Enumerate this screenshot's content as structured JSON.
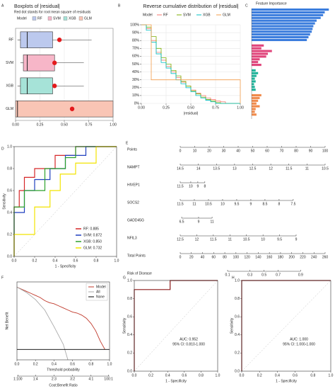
{
  "chart_data": [
    {
      "type": "box",
      "panel": "A",
      "title": "Boxplots of |residual|",
      "subtitle": "Red dot stands for root mean square of residuals",
      "legend_title": "Model",
      "categories": [
        "RF",
        "SVM",
        "XGB",
        "GLM"
      ],
      "colors": [
        "#bcc9ee",
        "#f7b6c8",
        "#a6e3d8",
        "#f9c5b5"
      ],
      "dot_color": "#e41a1c",
      "boxes": [
        {
          "min": 0.02,
          "q1": 0.05,
          "median": 0.12,
          "q3": 0.38,
          "max": 0.78,
          "rmse": 0.45
        },
        {
          "min": 0.05,
          "q1": 0.08,
          "median": 0.12,
          "q3": 0.4,
          "max": 0.7,
          "rmse": 0.4
        },
        {
          "min": 0.02,
          "q1": 0.05,
          "median": 0.12,
          "q3": 0.38,
          "max": 0.7,
          "rmse": 0.4
        },
        {
          "min": 0.0,
          "q1": 0.0,
          "median": 0.02,
          "q3": 1.0,
          "max": 1.0,
          "rmse": 0.58
        }
      ],
      "xlim": [
        0,
        1
      ],
      "xticks": [
        {
          "value": 0,
          "label": "0.00"
        },
        {
          "value": 0.25,
          "label": "0.25"
        },
        {
          "value": 0.5,
          "label": "0.50"
        },
        {
          "value": 0.75,
          "label": "0.75"
        },
        {
          "value": 1,
          "label": "1.00"
        }
      ],
      "grid": true
    },
    {
      "type": "step",
      "panel": "B",
      "title": "Reverse cumulative distribution of |residual|",
      "legend_title": "Model",
      "x_label": "|residual|",
      "x": [
        0,
        0.05,
        0.1,
        0.15,
        0.2,
        0.25,
        0.3,
        0.35,
        0.4,
        0.45,
        0.5,
        0.55,
        0.6,
        0.65,
        0.7,
        0.75,
        0.8,
        0.85,
        0.9,
        0.95,
        1.0
      ],
      "series": [
        {
          "name": "RF",
          "color": "#F8766D",
          "values": [
            100,
            95,
            80,
            65,
            55,
            47,
            40,
            33,
            27,
            22,
            17,
            13,
            10,
            7,
            5,
            3,
            2,
            0,
            0,
            0,
            0
          ]
        },
        {
          "name": "SVM",
          "color": "#7CAE00",
          "values": [
            100,
            97,
            85,
            70,
            58,
            50,
            42,
            35,
            28,
            22,
            16,
            12,
            8,
            5,
            3,
            1,
            0,
            0,
            0,
            0,
            0
          ]
        },
        {
          "name": "XGB",
          "color": "#00BFC4",
          "values": [
            100,
            93,
            78,
            63,
            52,
            45,
            38,
            30,
            25,
            20,
            15,
            10,
            7,
            4,
            2,
            0,
            0,
            0,
            0,
            0,
            0
          ]
        },
        {
          "name": "GLM",
          "color": "#f39c4a",
          "values": [
            100,
            100,
            30,
            30,
            30,
            30,
            30,
            30,
            30,
            30,
            30,
            30,
            30,
            30,
            30,
            30,
            30,
            30,
            30,
            30,
            0
          ]
        }
      ],
      "xlim": [
        0,
        1
      ],
      "xticks": [
        {
          "value": 0,
          "label": "0.00"
        },
        {
          "value": 0.25,
          "label": "0.25"
        },
        {
          "value": 0.5,
          "label": "0.50"
        },
        {
          "value": 0.75,
          "label": "0.75"
        },
        {
          "value": 1,
          "label": "1.00"
        }
      ],
      "ylim": [
        0,
        100
      ],
      "yticks": [
        {
          "value": 0,
          "label": "0%"
        },
        {
          "value": 10,
          "label": "10%"
        },
        {
          "value": 20,
          "label": "20%"
        },
        {
          "value": 30,
          "label": "30%"
        },
        {
          "value": 40,
          "label": "40%"
        },
        {
          "value": 50,
          "label": "50%"
        },
        {
          "value": 60,
          "label": "60%"
        },
        {
          "value": 70,
          "label": "70%"
        },
        {
          "value": 80,
          "label": "80%"
        },
        {
          "value": 90,
          "label": "90%"
        },
        {
          "value": 100,
          "label": "100%"
        }
      ],
      "grid": true
    },
    {
      "type": "importance",
      "panel": "C",
      "title": "Feature Importance",
      "xlim": [
        0,
        1
      ],
      "series": [
        {
          "color": "#3b7ddd",
          "values": [
            0.95,
            0.9,
            0.88,
            0.85,
            0.8,
            0.78,
            0.76,
            0.75,
            0.74,
            0.72,
            0.7,
            0.68
          ]
        },
        {
          "color": "#e0457b",
          "values": [
            0.15,
            0.12,
            0.25,
            0.2,
            0.18,
            0.1,
            0.08,
            0.12
          ]
        },
        {
          "color": "#1fb39a",
          "values": [
            0.05,
            0.08,
            0.06,
            0.04,
            0.05,
            0.03,
            0.04,
            0.05
          ]
        },
        {
          "color": "#f08a4b",
          "values": [
            0.12,
            0.1,
            0.08,
            0.06,
            0.1,
            0.05,
            0.04,
            0.06
          ]
        }
      ]
    },
    {
      "type": "roc",
      "panel": "D",
      "x_label": "1 - Specificity",
      "y_label": "Sensitivity",
      "legend": "bottom-right",
      "series": [
        {
          "name": "RF: 0.885",
          "color": "#d62728",
          "x": [
            0,
            0,
            0.05,
            0.05,
            0.1,
            0.1,
            0.2,
            0.2,
            0.4,
            0.4,
            0.6,
            0.6,
            1
          ],
          "values": [
            0,
            0.45,
            0.45,
            0.6,
            0.6,
            0.72,
            0.72,
            0.8,
            0.8,
            0.92,
            0.92,
            1,
            1
          ]
        },
        {
          "name": "SVM: 0.872",
          "color": "#1f3fbf",
          "x": [
            0,
            0,
            0.1,
            0.1,
            0.2,
            0.2,
            0.35,
            0.35,
            0.5,
            0.5,
            0.7,
            0.7,
            1
          ],
          "values": [
            0,
            0.4,
            0.4,
            0.6,
            0.6,
            0.7,
            0.7,
            0.8,
            0.8,
            0.92,
            0.92,
            1,
            1
          ]
        },
        {
          "name": "XGB: 0.850",
          "color": "#2ca02c",
          "x": [
            0,
            0,
            0.1,
            0.1,
            0.3,
            0.3,
            0.5,
            0.5,
            0.6,
            0.6,
            1
          ],
          "values": [
            0,
            0.45,
            0.45,
            0.6,
            0.6,
            0.8,
            0.8,
            0.9,
            0.9,
            1,
            1
          ]
        },
        {
          "name": "GLM: 0.732",
          "color": "#f2e400",
          "x": [
            0,
            0,
            0.2,
            0.2,
            0.35,
            0.35,
            0.45,
            0.45,
            0.6,
            0.6,
            0.8,
            0.8,
            1
          ],
          "values": [
            0,
            0.2,
            0.2,
            0.45,
            0.45,
            0.6,
            0.6,
            0.75,
            0.75,
            0.85,
            0.85,
            1,
            1
          ]
        }
      ],
      "xlim": [
        0,
        1
      ],
      "xticks": [
        {
          "value": 0,
          "label": "0.0"
        },
        0.2,
        0.4,
        0.6,
        0.8,
        {
          "value": 1,
          "label": "1.0"
        }
      ],
      "ylim": [
        0,
        1
      ],
      "yticks": [
        {
          "value": 0,
          "label": "0.0"
        },
        0.2,
        0.4,
        0.6,
        0.8,
        {
          "value": 1,
          "label": "1.0"
        }
      ]
    },
    {
      "type": "nomogram",
      "panel": "E",
      "points_lim": [
        0,
        100
      ],
      "total_lim": [
        0,
        260
      ],
      "rows": [
        {
          "label": "Points",
          "ticks": [
            0,
            10,
            20,
            30,
            40,
            50,
            60,
            70,
            80,
            90,
            100
          ],
          "points": [
            0,
            100
          ]
        },
        {
          "label": "NAMPT",
          "ticks": [
            14.5,
            14,
            13.5,
            13,
            12.5,
            12,
            11.5,
            11,
            10.5
          ],
          "points": [
            0,
            100
          ]
        },
        {
          "label": "HIVEP1",
          "ticks": [
            11.5,
            10,
            9,
            8
          ],
          "points": [
            0,
            17
          ]
        },
        {
          "label": "SOCS2",
          "ticks": [
            11.5,
            11,
            10.5,
            10,
            9.5,
            9,
            8.5,
            8,
            7.5
          ],
          "points": [
            0,
            78
          ]
        },
        {
          "label": "GADD45G",
          "ticks": [
            6.5,
            9,
            11
          ],
          "points": [
            1,
            22
          ]
        },
        {
          "label": "NFIL3",
          "ticks": [
            12.5,
            12,
            11.5,
            11,
            10.5,
            10,
            9.5,
            9
          ],
          "points": [
            0,
            80
          ]
        },
        {
          "label": "Total Points",
          "ticks": [
            0,
            20,
            40,
            60,
            80,
            100,
            120,
            140,
            160,
            180,
            200,
            220,
            240,
            260
          ],
          "total_points": [
            0,
            260
          ]
        },
        {
          "label": "Risk of Disease",
          "ticks": [
            0.1,
            0.3,
            0.5,
            0.7,
            0.9
          ],
          "total_points": [
            85,
            216
          ],
          "scale": "logit"
        }
      ]
    },
    {
      "type": "dca",
      "panel": "F",
      "x_label": "Threshold probability",
      "y_label": "Net Benefit",
      "cost_label": "Cost:Benefit Ratio",
      "legend": "top-right",
      "series": [
        {
          "name": "Model",
          "color": "#c0392b",
          "x": [
            0,
            0.05,
            0.1,
            0.15,
            0.2,
            0.25,
            0.3,
            0.35,
            0.4,
            0.45,
            0.5,
            0.55,
            0.6,
            0.65,
            0.7,
            0.75,
            0.8,
            0.85,
            0.9,
            0.95
          ],
          "values": [
            0.6,
            0.58,
            0.56,
            0.54,
            0.52,
            0.5,
            0.47,
            0.45,
            0.44,
            0.42,
            0.4,
            0.38,
            0.36,
            0.35,
            0.33,
            0.3,
            0.25,
            0.18,
            0.08,
            0.0
          ]
        },
        {
          "name": "All",
          "color": "#aaaaaa",
          "x": [
            0,
            0.1,
            0.2,
            0.3,
            0.4,
            0.5,
            0.55
          ],
          "values": [
            0.6,
            0.55,
            0.48,
            0.38,
            0.22,
            0.05,
            -0.1
          ]
        },
        {
          "name": "None",
          "color": "#000000",
          "x": [
            0,
            1
          ],
          "values": [
            0,
            0
          ]
        }
      ],
      "xlim": [
        0,
        1
      ],
      "xticks": [
        {
          "value": 0,
          "label": "0.0"
        },
        0.2,
        0.4,
        0.6,
        0.8,
        {
          "value": 1,
          "label": "1.0"
        }
      ],
      "ylim": [
        -0.1,
        0.65
      ],
      "cost_ticks": [
        {
          "value": 0.01,
          "label": "1:100"
        },
        {
          "value": 0.2,
          "label": "1:4"
        },
        {
          "value": 0.4,
          "label": "2:3"
        },
        {
          "value": 0.6,
          "label": "3:2"
        },
        {
          "value": 0.8,
          "label": "4:1"
        },
        {
          "value": 0.99,
          "label": "100:1"
        }
      ]
    },
    {
      "type": "roc",
      "panel": "G",
      "x_label": "1 - Specificity",
      "y_label": "Sensitivity",
      "auc_label": "AUC: 0.952",
      "ci_label": "95% CI: 0.810-1.000",
      "series": [
        {
          "color": "#8b1a1a",
          "x": [
            0,
            0,
            0.43,
            0.43,
            1
          ],
          "values": [
            0,
            0.9,
            0.9,
            1,
            1
          ]
        }
      ],
      "xlim": [
        0,
        1
      ],
      "xticks": [
        {
          "value": 0,
          "label": "0.0"
        },
        0.2,
        0.4,
        0.6,
        0.8,
        {
          "value": 1,
          "label": "1.0"
        }
      ],
      "ylim": [
        0,
        1
      ],
      "yticks": [
        {
          "value": 0,
          "label": "0.0"
        },
        0.2,
        0.4,
        0.6,
        0.8,
        {
          "value": 1,
          "label": "1.0"
        }
      ]
    },
    {
      "type": "roc",
      "panel": "H",
      "x_label": "1 - Specificity",
      "y_label": "Sensitivity",
      "auc_label": "AUC: 1.000",
      "ci_label": "95% CI: 1.000-1.000",
      "series": [
        {
          "color": "#8b1a1a",
          "x": [
            0,
            0,
            1
          ],
          "values": [
            0,
            1,
            1
          ]
        }
      ],
      "xlim": [
        0,
        1
      ],
      "xticks": [
        {
          "value": 0,
          "label": "0.0"
        },
        0.2,
        0.4,
        0.6,
        0.8,
        {
          "value": 1,
          "label": "1.0"
        }
      ],
      "ylim": [
        0,
        1
      ],
      "yticks": [
        {
          "value": 0,
          "label": "0.0"
        },
        0.2,
        0.4,
        0.6,
        0.8,
        {
          "value": 1,
          "label": "1.0"
        }
      ]
    }
  ]
}
